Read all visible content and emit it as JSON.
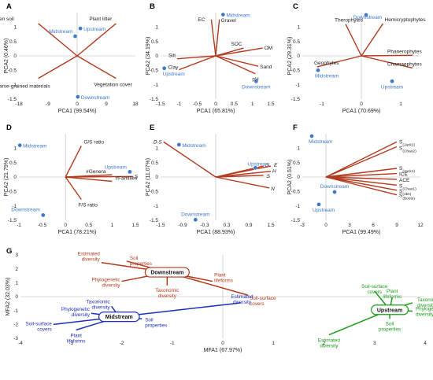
{
  "figure": {
    "colors": {
      "biplot_vector": "#b23a1e",
      "point": "#3f78c8",
      "axis_line": "#b8b8b8",
      "midstream_g": "#1c2fb8",
      "upstream_g": "#1a9a1a"
    }
  },
  "chart_data": [
    {
      "id": "A",
      "type": "scatter",
      "panel_label": "A",
      "xlabel": "PCA1 (99.54%)",
      "ylabel": "PCA2 (0.46%)",
      "xlim": [
        -18,
        18
      ],
      "ylim": [
        -1.5,
        1.5
      ],
      "xticks": [
        -18,
        -9,
        0,
        9,
        18
      ],
      "yticks": [
        1,
        0.5,
        0,
        -0.5,
        -1,
        -1.5
      ],
      "points": [
        {
          "label": "Upstream",
          "x": 1,
          "y": 0.95
        },
        {
          "label": "Midstream",
          "x": -0.6,
          "y": 0.68
        },
        {
          "label": "Downstream",
          "x": 0.2,
          "y": -1.42
        }
      ],
      "loadings": [
        {
          "label": "Barren soil",
          "x": -12,
          "y": 1.12
        },
        {
          "label": "Plant litter",
          "x": 12,
          "y": 1.12
        },
        {
          "label": "Coarse-grained materials",
          "x": -12,
          "y": -0.78
        },
        {
          "label": "Vegetation cover",
          "x": 12,
          "y": -0.78
        }
      ]
    },
    {
      "id": "B",
      "type": "scatter",
      "panel_label": "B",
      "xlabel": "PCA1 (65.81%)",
      "ylabel": "PCA2 (34.19%)",
      "xlim": [
        -1.5,
        1.5
      ],
      "ylim": [
        -1.5,
        1.5
      ],
      "xticks": [
        -1.5,
        -1,
        -0.5,
        0,
        0.5,
        1,
        1.5
      ],
      "yticks": [
        1,
        0.5,
        0,
        -0.5,
        -1,
        -1.5
      ],
      "points": [
        {
          "label": "Midstream",
          "x": 0.2,
          "y": 1.43
        },
        {
          "label": "Upstream",
          "x": -1.4,
          "y": -0.43
        },
        {
          "label": "Downstream",
          "x": 1.1,
          "y": -0.88
        }
      ],
      "loadings": [
        {
          "label": "EC",
          "x": -0.12,
          "y": 1.26
        },
        {
          "label": "Gravel",
          "x": 0.1,
          "y": 1.26
        },
        {
          "label": "SOC",
          "x": 0.76,
          "y": 0.27
        },
        {
          "label": "OM",
          "x": 1.28,
          "y": 0.27
        },
        {
          "label": "Silt",
          "x": -1.05,
          "y": -0.1
        },
        {
          "label": "Clay",
          "x": -1.0,
          "y": -0.48
        },
        {
          "label": "Sand",
          "x": 1.16,
          "y": -0.36
        },
        {
          "label": "pH",
          "x": 1.08,
          "y": -0.62
        }
      ]
    },
    {
      "id": "C",
      "type": "scatter",
      "panel_label": "C",
      "xlabel": "PCA1 (70.69%)",
      "ylabel": "PCA2 (29.31%)",
      "xlim": [
        -1.5,
        1.5
      ],
      "ylim": [
        -1.5,
        1.5
      ],
      "xticks": [
        -1,
        0,
        1
      ],
      "yticks": [
        1,
        0.5,
        0,
        -0.5,
        -1,
        -1.5
      ],
      "points": [
        {
          "label": "Downstream",
          "x": 0.12,
          "y": 1.42
        },
        {
          "label": "Midstream",
          "x": -1.1,
          "y": -0.5
        },
        {
          "label": "Upstream",
          "x": 0.78,
          "y": -0.88
        }
      ],
      "loadings": [
        {
          "label": "Therophytes",
          "x": -0.4,
          "y": 1.1
        },
        {
          "label": "Hemicryptophytes",
          "x": 0.55,
          "y": 1.12
        },
        {
          "label": "Phanerophytes",
          "x": 1.3,
          "y": 0.02
        },
        {
          "label": "Geophytes",
          "x": -1.12,
          "y": -0.38
        },
        {
          "label": "Chamaephytes",
          "x": 1.3,
          "y": -0.42
        }
      ]
    },
    {
      "id": "D",
      "type": "scatter",
      "panel_label": "D",
      "xlabel": "PCA1 (78.21%)",
      "ylabel": "PCA2 (21.79%)",
      "xlim": [
        -1,
        1.5
      ],
      "ylim": [
        -1.5,
        1.5
      ],
      "xticks": [
        -1,
        -0.5,
        0,
        0.5,
        1,
        1.5
      ],
      "yticks": [
        1,
        0.5,
        0,
        -0.5,
        -1,
        -1.5
      ],
      "points": [
        {
          "label": "Midstream",
          "x": -0.98,
          "y": 1.1
        },
        {
          "label": "Upstream",
          "x": 1.38,
          "y": 0.18
        },
        {
          "label": "Downstream",
          "x": -0.48,
          "y": -1.32
        }
      ],
      "loadings": [
        {
          "label": "G/S ratio",
          "x": 0.34,
          "y": 1.08
        },
        {
          "label": "#Genera",
          "x": 1.0,
          "y": 0.08
        },
        {
          "label": "S",
          "x": 1.45,
          "y": 0.02
        },
        {
          "label": "#Families",
          "x": 1.0,
          "y": -0.15
        },
        {
          "label": "F/S ratio",
          "x": 0.34,
          "y": -0.78
        }
      ]
    },
    {
      "id": "E",
      "type": "scatter",
      "panel_label": "E",
      "xlabel": "PCA1 (88.93%)",
      "ylabel": "PCA2 (11.07%)",
      "xlim": [
        -1.5,
        1.5
      ],
      "ylim": [
        -1.5,
        1.5
      ],
      "xticks": [
        -1.5,
        -0.9,
        -0.3,
        0.3,
        0.9,
        1.5
      ],
      "yticks": [
        1,
        0.5,
        0,
        -0.5,
        -1,
        -1.5
      ],
      "points": [
        {
          "label": "Midstream",
          "x": -1.0,
          "y": 1.12
        },
        {
          "label": "Upstream",
          "x": 1.08,
          "y": 0.32
        },
        {
          "label": "Downstream",
          "x": -0.55,
          "y": -1.48
        }
      ],
      "loadings": [
        {
          "label": "D.S",
          "x": -1.42,
          "y": 1.22
        },
        {
          "label": "D",
          "x": 1.3,
          "y": 0.38
        },
        {
          "label": "E",
          "x": 1.5,
          "y": 0.38
        },
        {
          "label": "H",
          "x": 1.5,
          "y": 0.2
        },
        {
          "label": "S",
          "x": 1.3,
          "y": 0.06
        },
        {
          "label": "N",
          "x": 1.46,
          "y": -0.38
        }
      ]
    },
    {
      "id": "F",
      "type": "scatter",
      "panel_label": "F",
      "xlabel": "PCA1 (99.49%)",
      "ylabel": "PCA2 (0.51%)",
      "xlim": [
        -3,
        12
      ],
      "ylim": [
        -1.5,
        1.5
      ],
      "xticks": [
        -3,
        0,
        3,
        6,
        9,
        12
      ],
      "yticks": [
        1,
        0.5,
        0,
        -0.5,
        -1,
        -1.5
      ],
      "points": [
        {
          "label": "Midstream",
          "x": -1.8,
          "y": 1.42
        },
        {
          "label": "Downstream",
          "x": 1.1,
          "y": -0.52
        },
        {
          "label": "Upstream",
          "x": -0.9,
          "y": -0.95
        }
      ],
      "loadings": [
        {
          "label": "S",
          "label_sub": "(Jack2)",
          "x": 9.0,
          "y": 1.22
        },
        {
          "label": "S",
          "label_sub": "(Chao2)",
          "x": 9.0,
          "y": 1.05
        },
        {
          "label": "S",
          "label_sub": "(Jack1)",
          "x": 9.0,
          "y": 0.3
        },
        {
          "label": "ICE",
          "x": 9.0,
          "y": 0.12
        },
        {
          "label": "ACE",
          "x": 9.0,
          "y": -0.08
        },
        {
          "label": "S",
          "label_sub": "(Chao1)",
          "x": 9.0,
          "y": -0.28
        },
        {
          "label": "S",
          "label_sub": "(obs)",
          "x": 9.0,
          "y": -0.46
        },
        {
          "label": "S",
          "label_sub": "(Boots)",
          "x": 9.0,
          "y": -0.62
        }
      ]
    },
    {
      "id": "G",
      "type": "scatter",
      "panel_label": "G",
      "xlabel": "MFA1 (67.97%)",
      "ylabel": "MFA2 (32.03%)",
      "xlim": [
        -4,
        4
      ],
      "ylim": [
        -3,
        3
      ],
      "xticks": [
        -4,
        -3,
        -2,
        -1,
        0,
        1,
        2,
        3,
        4
      ],
      "yticks": [
        3,
        2,
        1,
        0,
        -1,
        -2,
        -3
      ],
      "groups": [
        {
          "name": "Downstream",
          "center": {
            "x": -1.1,
            "y": 1.75
          },
          "color": "#b23a1e",
          "variables": [
            {
              "label": "Estimated diversity",
              "x": -2.4,
              "y": 2.45
            },
            {
              "label": "Soil properties",
              "x": -1.9,
              "y": 2.55
            },
            {
              "label": "Phylogenetic diversity",
              "x": -2.0,
              "y": 1.1
            },
            {
              "label": "Plant lifeforms",
              "x": -0.2,
              "y": 1.1
            },
            {
              "label": "Taxonomic diversity",
              "x": -1.1,
              "y": 0.8
            },
            {
              "label": "Soil-surface covers",
              "x": 0.5,
              "y": 0.1
            }
          ]
        },
        {
          "name": "Midstream",
          "center": {
            "x": -2.05,
            "y": -1.45
          },
          "color": "#1c2fb8",
          "variables": [
            {
              "label": "Taxonomic diversity",
              "x": -2.2,
              "y": -0.7
            },
            {
              "label": "Phylogenetic diversity",
              "x": -2.6,
              "y": -1.2
            },
            {
              "label": "Soil-surface covers",
              "x": -3.35,
              "y": -2.0
            },
            {
              "label": "Plant lifeforms",
              "x": -2.9,
              "y": -2.4
            },
            {
              "label": "Soil properties",
              "x": -1.6,
              "y": -1.6
            },
            {
              "label": "Estimated diversity",
              "x": 0.35,
              "y": -0.45
            }
          ]
        },
        {
          "name": "Upstream",
          "center": {
            "x": 3.3,
            "y": -0.95
          },
          "color": "#1a9a1a",
          "variables": [
            {
              "label": "Soil-surface covers",
              "x": 3.0,
              "y": 0.4
            },
            {
              "label": "Plant lifeforms",
              "x": 3.35,
              "y": -0.05
            },
            {
              "label": "Taxonomic diversity",
              "x": 3.75,
              "y": -0.45
            },
            {
              "label": "Phylogenetic diversity",
              "x": 3.75,
              "y": -1.05
            },
            {
              "label": "Soil properties",
              "x": 3.3,
              "y": -1.6
            },
            {
              "label": "Estimated diversity",
              "x": 2.1,
              "y": -2.75
            }
          ]
        }
      ]
    }
  ]
}
